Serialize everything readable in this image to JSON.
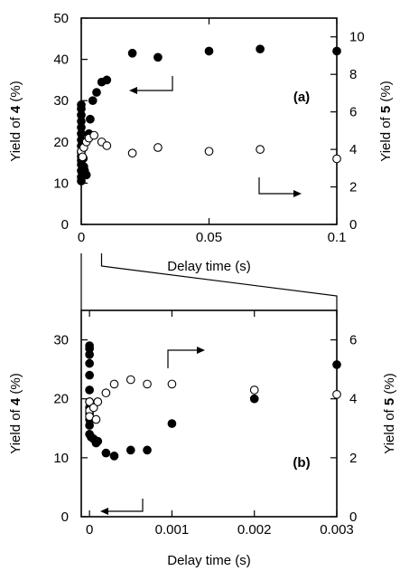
{
  "chart_data": [
    {
      "type": "scatter",
      "panel_label": "(a)",
      "xlabel": "Delay time (s)",
      "ylabel_left": "Yield of 4  (%)",
      "ylabel_right": "Yield of 5  (%)",
      "xlim": [
        0,
        0.1
      ],
      "ylim_left": [
        0,
        50
      ],
      "ylim_right": [
        0,
        11
      ],
      "x_ticks": [
        0,
        0.05,
        0.1
      ],
      "x_tick_labels": [
        "0",
        "0.05",
        "0.1"
      ],
      "y_ticks_left": [
        0,
        10,
        20,
        30,
        40,
        50
      ],
      "y_ticks_right": [
        0,
        2,
        4,
        6,
        8,
        10
      ],
      "grid": false,
      "series": [
        {
          "marker": "filled-circle",
          "axis": "left",
          "points": [
            [
              0,
              10.5
            ],
            [
              0,
              11.5
            ],
            [
              0,
              13
            ],
            [
              0,
              14.5
            ],
            [
              0,
              15.5
            ],
            [
              0,
              16.5
            ],
            [
              0,
              17.5
            ],
            [
              0,
              19
            ],
            [
              0,
              20.5
            ],
            [
              0,
              22
            ],
            [
              0,
              23.5
            ],
            [
              0,
              25
            ],
            [
              0,
              26.5
            ],
            [
              0,
              28
            ],
            [
              0,
              29
            ],
            [
              0.0005,
              18.5
            ],
            [
              0.0008,
              16
            ],
            [
              0.001,
              14
            ],
            [
              0.0013,
              13
            ],
            [
              0.002,
              12
            ],
            [
              0.003,
              22
            ],
            [
              0.0035,
              25.5
            ],
            [
              0.0045,
              30
            ],
            [
              0.006,
              32
            ],
            [
              0.008,
              34.5
            ],
            [
              0.01,
              35
            ],
            [
              0.02,
              41.5
            ],
            [
              0.03,
              40.5
            ],
            [
              0.05,
              42
            ],
            [
              0.07,
              42.5
            ],
            [
              0.1,
              42
            ]
          ]
        },
        {
          "marker": "open-circle",
          "axis": "right",
          "points": [
            [
              0,
              3.9
            ],
            [
              0.0005,
              3.6
            ],
            [
              0.001,
              4.1
            ],
            [
              0.002,
              4.4
            ],
            [
              0.003,
              4.6
            ],
            [
              0.005,
              4.75
            ],
            [
              0.008,
              4.4
            ],
            [
              0.01,
              4.2
            ],
            [
              0.02,
              3.8
            ],
            [
              0.03,
              4.1
            ],
            [
              0.05,
              3.9
            ],
            [
              0.07,
              4.0
            ],
            [
              0.1,
              3.5
            ]
          ]
        }
      ]
    },
    {
      "type": "scatter",
      "panel_label": "(b)",
      "xlabel": "Delay time (s)",
      "ylabel_left": "Yield of 4  (%)",
      "ylabel_right": "Yield of 5  (%)",
      "xlim": [
        -0.0001,
        0.003
      ],
      "ylim_left": [
        0,
        35
      ],
      "ylim_right": [
        0,
        7
      ],
      "x_ticks": [
        0,
        0.001,
        0.002,
        0.003
      ],
      "x_tick_labels": [
        "0",
        "0.001",
        "0.002",
        "0.003"
      ],
      "y_ticks_left": [
        0,
        10,
        20,
        30
      ],
      "y_ticks_right": [
        0,
        2,
        4,
        6
      ],
      "grid": false,
      "series": [
        {
          "marker": "filled-circle",
          "axis": "left",
          "points": [
            [
              0,
              29
            ],
            [
              0,
              28.5
            ],
            [
              0,
              27.5
            ],
            [
              0,
              26
            ],
            [
              0,
              24
            ],
            [
              0,
              21.5
            ],
            [
              0,
              19.5
            ],
            [
              0,
              18.5
            ],
            [
              0,
              17.5
            ],
            [
              0,
              16.5
            ],
            [
              0,
              15.5
            ],
            [
              0,
              14
            ],
            [
              2e-05,
              13.5
            ],
            [
              5e-05,
              13.2
            ],
            [
              8e-05,
              12.5
            ],
            [
              0.0001,
              12.8
            ],
            [
              0.0002,
              10.8
            ],
            [
              0.0003,
              10.3
            ],
            [
              0.0005,
              11.3
            ],
            [
              0.0007,
              11.3
            ],
            [
              0.001,
              15.8
            ],
            [
              0.002,
              20
            ],
            [
              0.003,
              25.8
            ]
          ]
        },
        {
          "marker": "open-circle",
          "axis": "right",
          "points": [
            [
              0,
              3.9
            ],
            [
              0,
              3.6
            ],
            [
              0,
              3.4
            ],
            [
              5e-05,
              3.7
            ],
            [
              8e-05,
              3.3
            ],
            [
              0.0001,
              3.9
            ],
            [
              0.0002,
              4.2
            ],
            [
              0.0003,
              4.5
            ],
            [
              0.0005,
              4.65
            ],
            [
              0.0007,
              4.5
            ],
            [
              0.001,
              4.5
            ],
            [
              0.002,
              4.3
            ],
            [
              0.003,
              4.15
            ]
          ]
        }
      ]
    }
  ]
}
